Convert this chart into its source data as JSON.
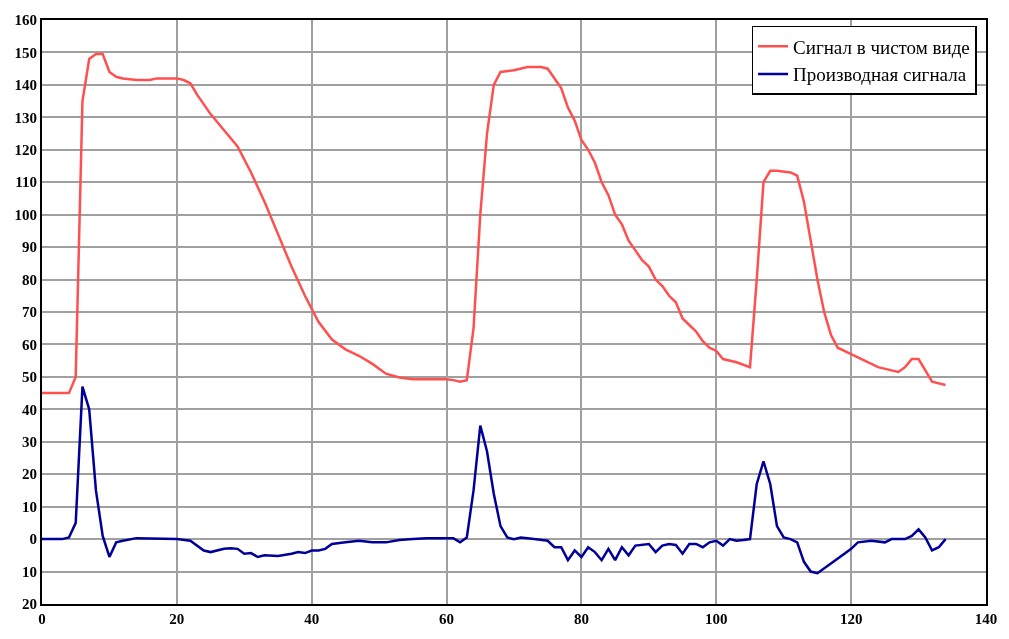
{
  "chart_data": {
    "type": "line",
    "xlim": [
      0,
      140
    ],
    "xticks": [
      0,
      20,
      40,
      60,
      80,
      100,
      120,
      140
    ],
    "ylim": [
      -20,
      160
    ],
    "yticks": [
      {
        "value": -20,
        "label": "20"
      },
      {
        "value": -10,
        "label": "10"
      },
      0,
      10,
      20,
      30,
      40,
      50,
      60,
      70,
      80,
      90,
      100,
      110,
      120,
      130,
      140,
      150,
      160
    ],
    "grid": true,
    "legend": "top right",
    "marker": "none",
    "line_style": "solid",
    "series": [
      {
        "name": "Сигнал в чистом виде",
        "color": "#ff5050",
        "x": [
          0,
          4,
          5,
          6,
          7,
          8,
          9,
          10,
          11,
          12,
          14,
          16,
          17,
          20,
          21,
          22,
          23,
          25,
          27,
          29,
          31,
          33,
          35,
          37,
          39,
          41,
          43,
          45,
          47,
          49,
          51,
          53,
          55,
          60,
          61,
          62,
          63,
          64,
          65,
          66,
          67,
          68,
          70,
          72,
          74,
          75,
          77,
          78,
          79,
          80,
          81,
          82,
          83,
          84,
          85,
          86,
          87,
          88,
          89,
          90,
          91,
          92,
          93,
          94,
          95,
          96,
          97,
          98,
          99,
          100,
          101,
          103,
          105,
          106,
          107,
          108,
          109,
          111,
          112,
          113,
          114,
          115,
          116,
          117,
          118,
          120,
          122,
          124,
          126,
          127,
          128,
          129,
          130,
          132,
          134
        ],
        "values": [
          45,
          45,
          50,
          135,
          148,
          149.5,
          149.5,
          144,
          142.5,
          142,
          141.5,
          141.5,
          142,
          142,
          141.5,
          140.5,
          137,
          131,
          126,
          121,
          113,
          104,
          94,
          84,
          75,
          67,
          61.5,
          58.5,
          56.5,
          54,
          51,
          49.8,
          49.3,
          49.3,
          49,
          48.5,
          49,
          65,
          100,
          125,
          140,
          144,
          144.5,
          145.5,
          145.5,
          145,
          139,
          133,
          129,
          123,
          120,
          116,
          110,
          106,
          100,
          97,
          92,
          89,
          86,
          84,
          80,
          78,
          75,
          73,
          68,
          66,
          64,
          61,
          59,
          58,
          55.5,
          54.5,
          53,
          80,
          110,
          113.5,
          113.5,
          113,
          112,
          104,
          92,
          80,
          70,
          63,
          59,
          57,
          55,
          53,
          52,
          51.5,
          53,
          55.5,
          55.5,
          48.5,
          47.5
        ]
      },
      {
        "name": "Производная сигнала",
        "color": "#000099",
        "x": [
          0,
          3,
          4,
          5,
          6,
          7,
          8,
          9,
          10,
          11,
          12,
          14,
          20,
          22,
          24,
          25,
          27,
          28,
          29,
          30,
          31,
          32,
          33,
          35,
          37,
          38,
          39,
          40,
          41,
          42,
          43,
          45,
          47,
          49,
          51,
          53,
          55,
          57,
          61,
          62,
          63,
          64,
          65,
          66,
          67,
          68,
          69,
          70,
          71,
          72,
          73,
          75,
          76,
          77,
          78,
          79,
          80,
          81,
          82,
          83,
          84,
          85,
          86,
          87,
          88,
          90,
          91,
          92,
          93,
          94,
          95,
          96,
          97,
          98,
          99,
          100,
          101,
          102,
          103,
          104,
          105,
          106,
          107,
          108,
          109,
          110,
          111,
          112,
          113,
          114,
          115,
          117,
          119,
          120,
          121,
          123,
          125,
          126,
          128,
          129,
          130,
          131,
          132,
          133,
          134
        ],
        "values": [
          0,
          0,
          0.5,
          5,
          47,
          40,
          15,
          1,
          -5.5,
          -1,
          -0.5,
          0.3,
          0,
          -0.5,
          -3.5,
          -4,
          -3,
          -2.8,
          -3,
          -4.5,
          -4.3,
          -5.5,
          -5,
          -5.2,
          -4.5,
          -4,
          -4.3,
          -3.5,
          -3.5,
          -3,
          -1.5,
          -1,
          -0.5,
          -1,
          -1,
          -0.3,
          0,
          0.3,
          0.3,
          -1,
          0.5,
          15,
          35,
          27,
          14,
          4,
          0.5,
          0,
          0.5,
          0.3,
          0,
          -0.5,
          -2.5,
          -2.5,
          -6.5,
          -3.5,
          -5.5,
          -2.5,
          -4,
          -6.5,
          -3,
          -6.5,
          -2.5,
          -5,
          -2,
          -1.5,
          -4,
          -2,
          -1.5,
          -1.8,
          -4.5,
          -1.5,
          -1.5,
          -2.5,
          -1,
          -0.5,
          -2,
          0,
          -0.5,
          -0.3,
          0,
          17,
          24,
          17,
          4,
          0.5,
          0,
          -1,
          -7,
          -10,
          -10.5,
          -7.5,
          -4.5,
          -3,
          -1,
          -0.5,
          -1,
          0,
          0,
          1,
          3,
          0.5,
          -3.5,
          -2.5,
          0
        ]
      }
    ]
  }
}
